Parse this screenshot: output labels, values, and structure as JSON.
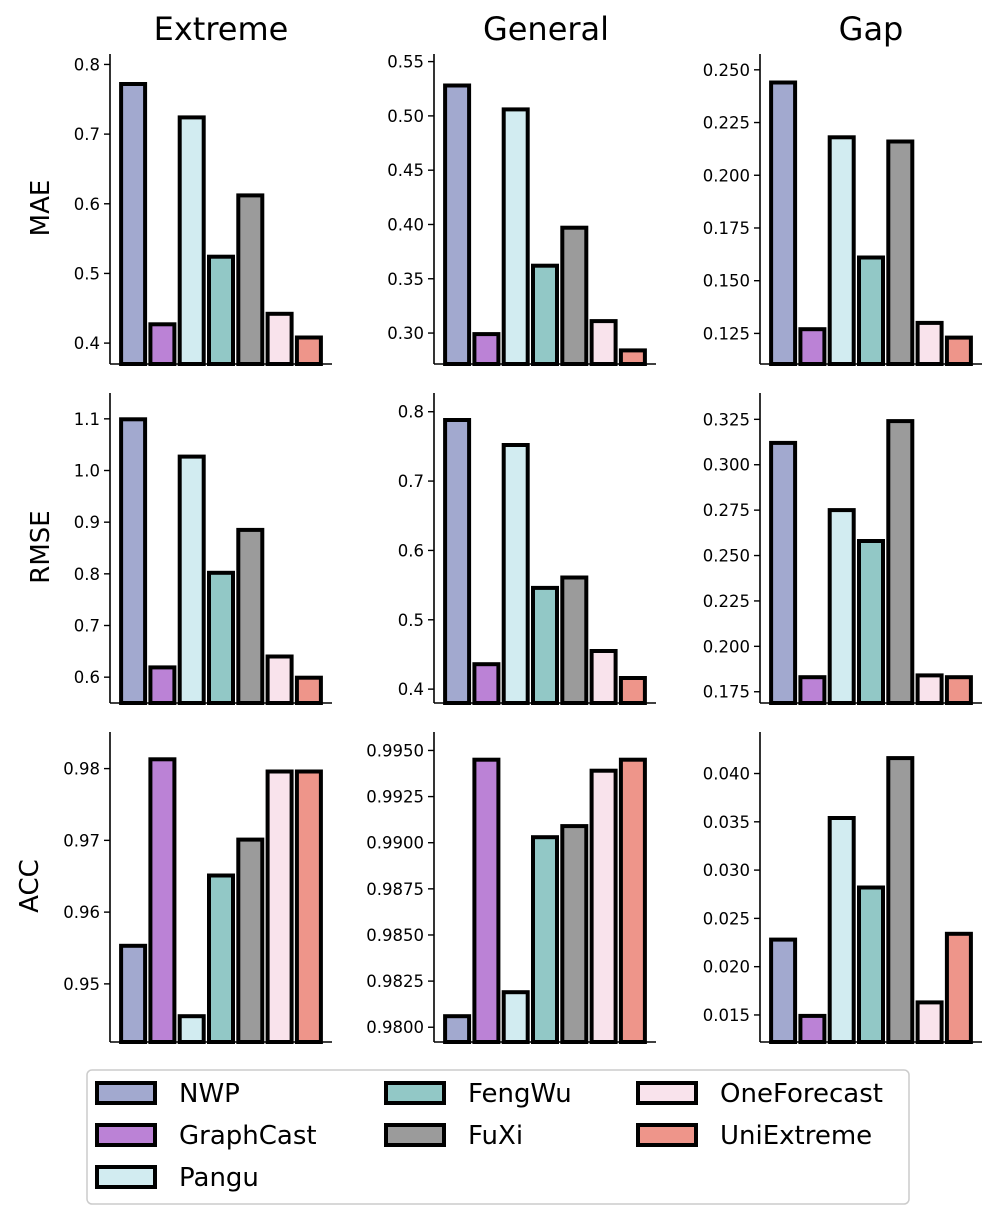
{
  "chart_data": {
    "type": "bar",
    "categories": [
      "NWP",
      "GraphCast",
      "Pangu",
      "FengWu",
      "FuXi",
      "OneForecast",
      "UniExtreme"
    ],
    "colors": [
      "#a2a9cf",
      "#bb82d6",
      "#d2ecf1",
      "#92c8c6",
      "#9b9b9b",
      "#f9e3ec",
      "#ee958a"
    ],
    "column_titles": [
      "Extreme",
      "General",
      "Gap"
    ],
    "row_labels": [
      "MAE",
      "RMSE",
      "ACC"
    ],
    "legend": {
      "placement": "bottom",
      "entries": [
        "NWP",
        "GraphCast",
        "Pangu",
        "FengWu",
        "FuXi",
        "OneForecast",
        "UniExtreme"
      ]
    },
    "panels": [
      {
        "row": "MAE",
        "column": "Extreme",
        "ylim": [
          0.37,
          0.815
        ],
        "ticks": [
          0.4,
          0.5,
          0.6,
          0.7,
          0.8
        ],
        "tick_labels": [
          "0.4",
          "0.5",
          "0.6",
          "0.7",
          "0.8"
        ],
        "values": [
          0.772,
          0.427,
          0.724,
          0.524,
          0.612,
          0.442,
          0.408
        ]
      },
      {
        "row": "MAE",
        "column": "General",
        "ylim": [
          0.2715,
          0.557
        ],
        "ticks": [
          0.3,
          0.35,
          0.4,
          0.45,
          0.5,
          0.55
        ],
        "tick_labels": [
          "0.30",
          "0.35",
          "0.40",
          "0.45",
          "0.50",
          "0.55"
        ],
        "values": [
          0.528,
          0.299,
          0.506,
          0.362,
          0.397,
          0.311,
          0.284
        ]
      },
      {
        "row": "MAE",
        "column": "Gap",
        "ylim": [
          0.1105,
          0.2575
        ],
        "ticks": [
          0.125,
          0.15,
          0.175,
          0.2,
          0.225,
          0.25
        ],
        "tick_labels": [
          "0.125",
          "0.150",
          "0.175",
          "0.200",
          "0.225",
          "0.250"
        ],
        "values": [
          0.244,
          0.127,
          0.218,
          0.161,
          0.216,
          0.13,
          0.123
        ]
      },
      {
        "row": "RMSE",
        "column": "Extreme",
        "ylim": [
          0.55,
          1.15
        ],
        "ticks": [
          0.6,
          0.7,
          0.8,
          0.9,
          1.0,
          1.1
        ],
        "tick_labels": [
          "0.6",
          "0.7",
          "0.8",
          "0.9",
          "1.0",
          "1.1"
        ],
        "values": [
          1.099,
          0.619,
          1.027,
          0.802,
          0.885,
          0.64,
          0.599
        ]
      },
      {
        "row": "RMSE",
        "column": "General",
        "ylim": [
          0.38,
          0.827
        ],
        "ticks": [
          0.4,
          0.5,
          0.6,
          0.7,
          0.8
        ],
        "tick_labels": [
          "0.4",
          "0.5",
          "0.6",
          "0.7",
          "0.8"
        ],
        "values": [
          0.788,
          0.436,
          0.752,
          0.546,
          0.561,
          0.455,
          0.416
        ]
      },
      {
        "row": "RMSE",
        "column": "Gap",
        "ylim": [
          0.1688,
          0.3395
        ],
        "ticks": [
          0.175,
          0.2,
          0.225,
          0.25,
          0.275,
          0.3,
          0.325
        ],
        "tick_labels": [
          "0.175",
          "0.200",
          "0.225",
          "0.250",
          "0.275",
          "0.300",
          "0.325"
        ],
        "values": [
          0.312,
          0.183,
          0.275,
          0.258,
          0.324,
          0.184,
          0.183
        ]
      },
      {
        "row": "ACC",
        "column": "Extreme",
        "ylim": [
          0.9419,
          0.9851
        ],
        "ticks": [
          0.95,
          0.96,
          0.97,
          0.98
        ],
        "tick_labels": [
          "0.95",
          "0.96",
          "0.97",
          "0.98"
        ],
        "values": [
          0.9553,
          0.9813,
          0.9455,
          0.9651,
          0.9701,
          0.9796,
          0.9796
        ]
      },
      {
        "row": "ACC",
        "column": "General",
        "ylim": [
          0.9792,
          0.996
        ],
        "ticks": [
          0.98,
          0.9825,
          0.985,
          0.9875,
          0.99,
          0.9925,
          0.995
        ],
        "tick_labels": [
          "0.9800",
          "0.9825",
          "0.9850",
          "0.9875",
          "0.9900",
          "0.9925",
          "0.9950"
        ],
        "values": [
          0.9806,
          0.9945,
          0.9819,
          0.9903,
          0.9909,
          0.9939,
          0.9945
        ]
      },
      {
        "row": "ACC",
        "column": "Gap",
        "ylim": [
          0.0122,
          0.0443
        ],
        "ticks": [
          0.015,
          0.02,
          0.025,
          0.03,
          0.035,
          0.04
        ],
        "tick_labels": [
          "0.015",
          "0.020",
          "0.025",
          "0.030",
          "0.035",
          "0.040"
        ],
        "values": [
          0.0228,
          0.0149,
          0.0354,
          0.0282,
          0.0416,
          0.0163,
          0.0234
        ]
      }
    ]
  }
}
